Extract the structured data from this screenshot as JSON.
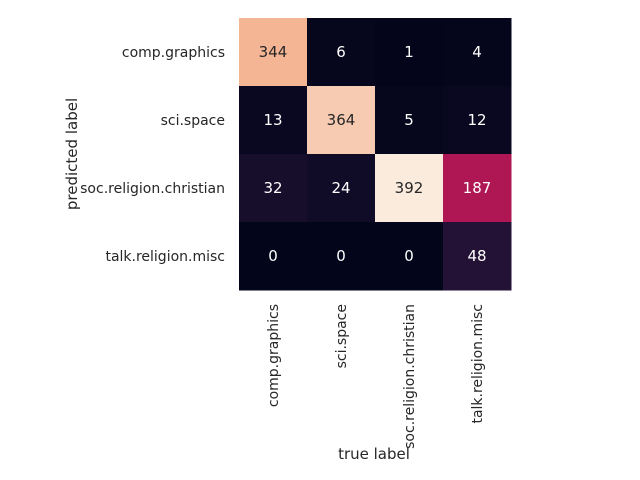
{
  "chart_data": {
    "type": "heatmap",
    "xlabel": "true label",
    "ylabel": "predicted label",
    "x_categories": [
      "comp.graphics",
      "sci.space",
      "soc.religion.christian",
      "talk.religion.misc"
    ],
    "y_categories": [
      "comp.graphics",
      "sci.space",
      "soc.religion.christian",
      "talk.religion.misc"
    ],
    "values": [
      [
        344,
        6,
        1,
        4
      ],
      [
        13,
        364,
        5,
        12
      ],
      [
        32,
        24,
        392,
        187
      ],
      [
        0,
        0,
        0,
        48
      ]
    ],
    "value_range": [
      0,
      392
    ],
    "colormap": "rocket",
    "colorbar": false,
    "grid": false
  }
}
